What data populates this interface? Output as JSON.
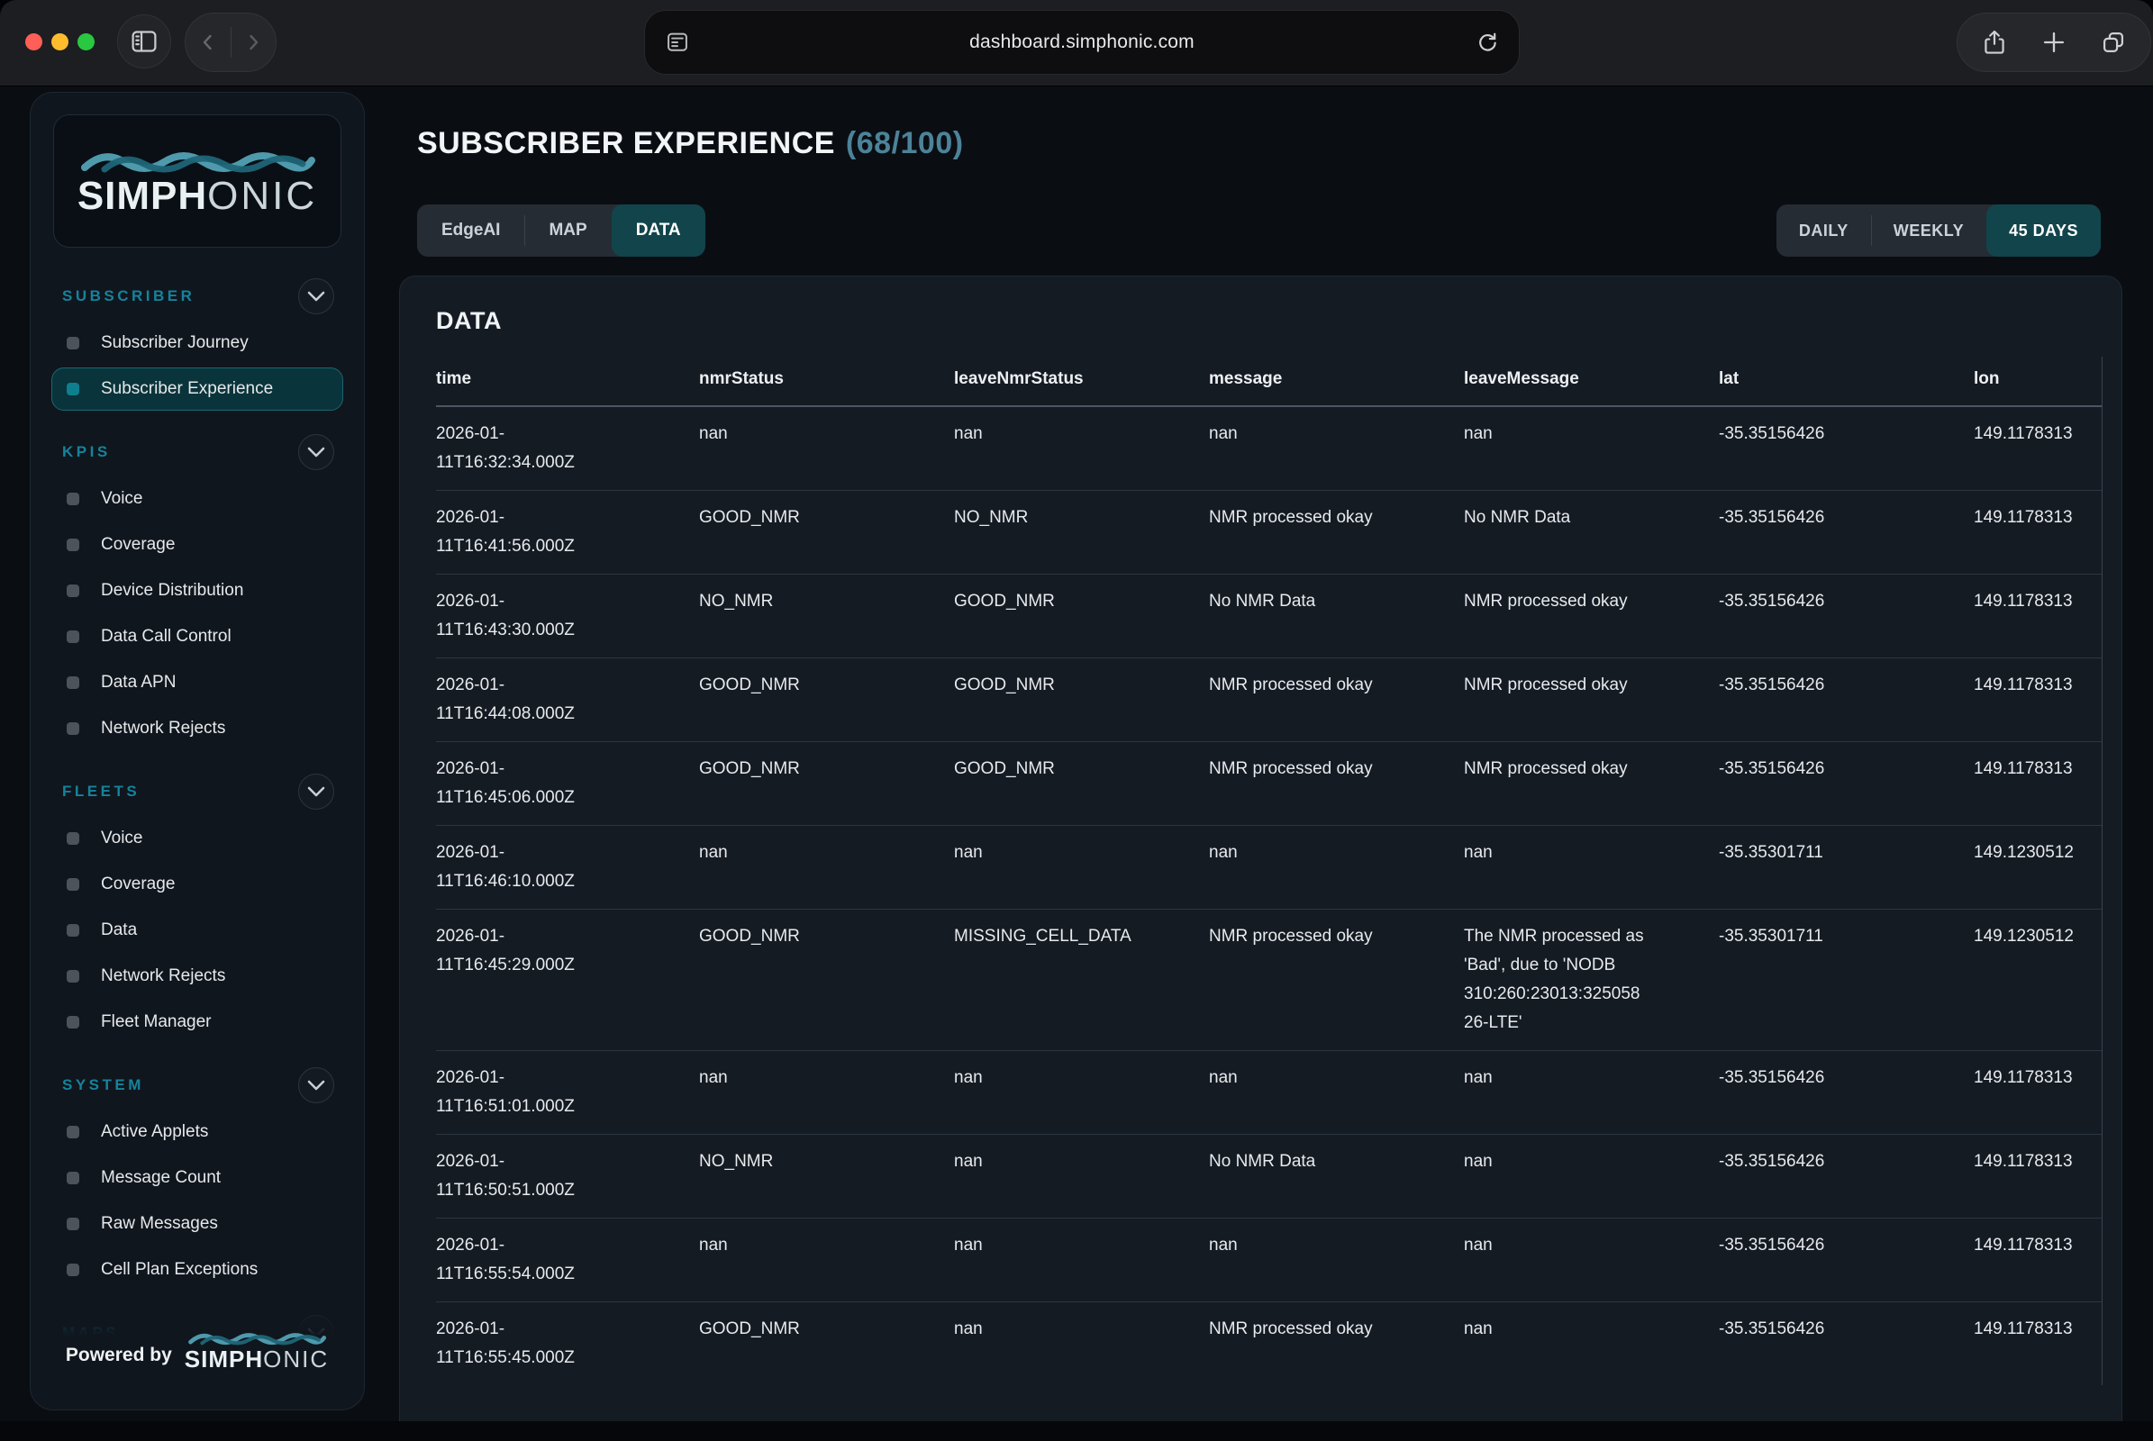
{
  "browser": {
    "url": "dashboard.simphonic.com"
  },
  "sidebar": {
    "logo": {
      "bold": "SIMPH",
      "light": "ONIC"
    },
    "sections": [
      {
        "title": "SUBSCRIBER",
        "items": [
          {
            "label": "Subscriber Journey",
            "active": false
          },
          {
            "label": "Subscriber Experience",
            "active": true
          }
        ]
      },
      {
        "title": "KPIS",
        "items": [
          {
            "label": "Voice",
            "active": false
          },
          {
            "label": "Coverage",
            "active": false
          },
          {
            "label": "Device Distribution",
            "active": false
          },
          {
            "label": "Data Call Control",
            "active": false
          },
          {
            "label": "Data APN",
            "active": false
          },
          {
            "label": "Network Rejects",
            "active": false
          }
        ]
      },
      {
        "title": "FLEETS",
        "items": [
          {
            "label": "Voice",
            "active": false
          },
          {
            "label": "Coverage",
            "active": false
          },
          {
            "label": "Data",
            "active": false
          },
          {
            "label": "Network Rejects",
            "active": false
          },
          {
            "label": "Fleet Manager",
            "active": false
          }
        ]
      },
      {
        "title": "SYSTEM",
        "items": [
          {
            "label": "Active Applets",
            "active": false
          },
          {
            "label": "Message Count",
            "active": false
          },
          {
            "label": "Raw Messages",
            "active": false
          },
          {
            "label": "Cell Plan Exceptions",
            "active": false
          }
        ]
      },
      {
        "title": "MAPS",
        "items": []
      }
    ],
    "footer": {
      "powered_by": "Powered by",
      "logo": {
        "bold": "SIMPH",
        "light": "ONIC"
      }
    }
  },
  "header": {
    "title": "SUBSCRIBER EXPERIENCE",
    "score": "(68/100)"
  },
  "view_tabs": [
    {
      "label": "EdgeAI",
      "active": false
    },
    {
      "label": "MAP",
      "active": false
    },
    {
      "label": "DATA",
      "active": true
    }
  ],
  "range_tabs": [
    {
      "label": "DAILY",
      "active": false
    },
    {
      "label": "WEEKLY",
      "active": false
    },
    {
      "label": "45 DAYS",
      "active": true
    }
  ],
  "panel": {
    "title": "DATA"
  },
  "table": {
    "columns": [
      "time",
      "nmrStatus",
      "leaveNmrStatus",
      "message",
      "leaveMessage",
      "lat",
      "lon"
    ],
    "rows": [
      [
        "2026-01-11T16:32:34.000Z",
        "nan",
        "nan",
        "nan",
        "nan",
        "-35.35156426",
        "149.1178313"
      ],
      [
        "2026-01-11T16:41:56.000Z",
        "GOOD_NMR",
        "NO_NMR",
        "NMR processed okay",
        "No NMR Data",
        "-35.35156426",
        "149.1178313"
      ],
      [
        "2026-01-11T16:43:30.000Z",
        "NO_NMR",
        "GOOD_NMR",
        "No NMR Data",
        "NMR processed okay",
        "-35.35156426",
        "149.1178313"
      ],
      [
        "2026-01-11T16:44:08.000Z",
        "GOOD_NMR",
        "GOOD_NMR",
        "NMR processed okay",
        "NMR processed okay",
        "-35.35156426",
        "149.1178313"
      ],
      [
        "2026-01-11T16:45:06.000Z",
        "GOOD_NMR",
        "GOOD_NMR",
        "NMR processed okay",
        "NMR processed okay",
        "-35.35156426",
        "149.1178313"
      ],
      [
        "2026-01-11T16:46:10.000Z",
        "nan",
        "nan",
        "nan",
        "nan",
        "-35.35301711",
        "149.1230512"
      ],
      [
        "2026-01-11T16:45:29.000Z",
        "GOOD_NMR",
        "MISSING_CELL_DATA",
        "NMR processed okay",
        "The NMR processed as 'Bad', due to 'NODB 310:260:23013:32505826-LTE'",
        "-35.35301711",
        "149.1230512"
      ],
      [
        "2026-01-11T16:51:01.000Z",
        "nan",
        "nan",
        "nan",
        "nan",
        "-35.35156426",
        "149.1178313"
      ],
      [
        "2026-01-11T16:50:51.000Z",
        "NO_NMR",
        "nan",
        "No NMR Data",
        "nan",
        "-35.35156426",
        "149.1178313"
      ],
      [
        "2026-01-11T16:55:54.000Z",
        "nan",
        "nan",
        "nan",
        "nan",
        "-35.35156426",
        "149.1178313"
      ],
      [
        "2026-01-11T16:55:45.000Z",
        "GOOD_NMR",
        "nan",
        "NMR processed okay",
        "nan",
        "-35.35156426",
        "149.1178313"
      ]
    ]
  },
  "colors": {
    "accent_teal": "#0e7f8f",
    "section_title": "#15839c",
    "active_item_bg": "#0a343b",
    "active_tab_bg": "#12444b",
    "score_text": "#4d8399",
    "traffic_red": "#ff5f57",
    "traffic_yellow": "#ffbd2e",
    "traffic_green": "#28c840"
  }
}
